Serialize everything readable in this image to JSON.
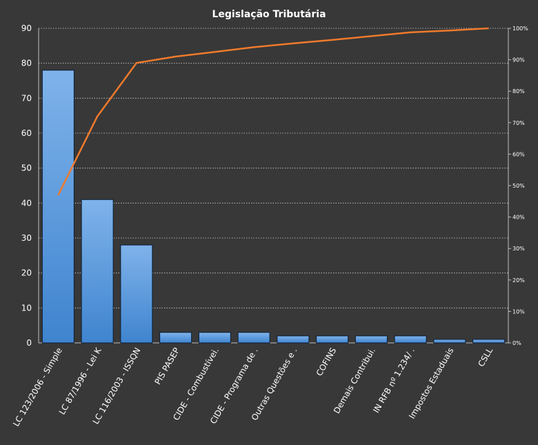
{
  "chart_data": {
    "type": "bar",
    "title": "Legislação Tributária",
    "categories": [
      "LC 123/2006 - Simple",
      "LC 87/1996 - Lei K",
      "LC 116/2003 - ISSQN",
      "PIS PASEP",
      "CIDE - Combustívei.",
      "CIDE - Programa de .",
      "Outras Questões e .",
      "COFINS",
      "Demais Contribui.",
      "IN RFB nº 1.234/ .",
      "Impostos Estaduais",
      "CSLL"
    ],
    "series": [
      {
        "type": "bar",
        "values": [
          78,
          41,
          28,
          3,
          3,
          3,
          2,
          2,
          2,
          2,
          1,
          1
        ]
      },
      {
        "type": "line",
        "axis": "secondary",
        "values": [
          0.47,
          0.72,
          0.89,
          0.91,
          0.925,
          0.94,
          0.952,
          0.963,
          0.975,
          0.987,
          0.993,
          1.0
        ]
      }
    ],
    "ylim": [
      0,
      90
    ],
    "yticks": [
      "0",
      "10",
      "20",
      "30",
      "40",
      "50",
      "60",
      "70",
      "80",
      "90"
    ],
    "y2lim": [
      0,
      1
    ],
    "y2ticks": [
      "0%",
      "10%",
      "20%",
      "30%",
      "40%",
      "50%",
      "60%",
      "70%",
      "80%",
      "90%",
      "100%"
    ],
    "grid": true,
    "colors": {
      "bar": "#4a8fd6",
      "line": "#f07a2c",
      "grid": "#d0d0d0",
      "background": "#383838"
    }
  }
}
